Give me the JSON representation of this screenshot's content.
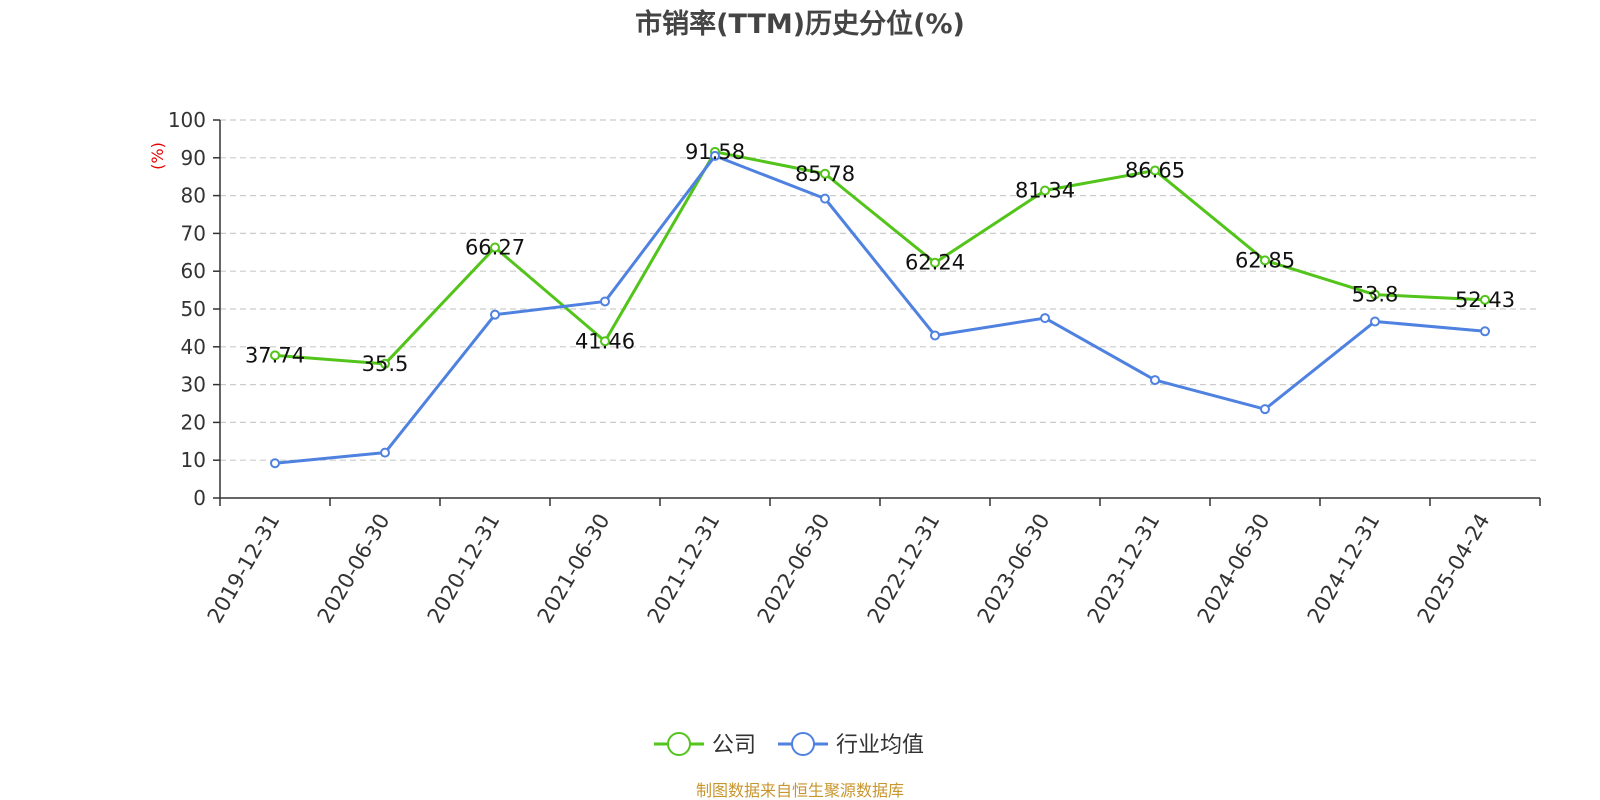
{
  "chart_data": {
    "type": "line",
    "title": "市销率(TTM)历史分位(%)",
    "ylabel": "(%)",
    "ylim": [
      0,
      100
    ],
    "yticks": [
      0,
      10,
      20,
      30,
      40,
      50,
      60,
      70,
      80,
      90,
      100
    ],
    "grid": true,
    "legend_position": "bottom",
    "categories": [
      "2019-12-31",
      "2020-06-30",
      "2020-12-31",
      "2021-06-30",
      "2021-12-31",
      "2022-06-30",
      "2022-12-31",
      "2023-06-30",
      "2023-12-31",
      "2024-06-30",
      "2024-12-31",
      "2025-04-24"
    ],
    "series": [
      {
        "name": "公司",
        "color": "#52c41a",
        "show_labels": true,
        "values": [
          37.74,
          35.5,
          66.27,
          41.46,
          91.58,
          85.78,
          62.24,
          81.34,
          86.65,
          62.85,
          53.8,
          52.43
        ]
      },
      {
        "name": "行业均值",
        "color": "#4f81e0",
        "show_labels": false,
        "values": [
          9.2,
          12.0,
          48.5,
          52.0,
          90.5,
          79.2,
          43.0,
          47.6,
          31.2,
          23.5,
          46.7,
          44.1
        ]
      }
    ],
    "source": "制图数据来自恒生聚源数据库"
  }
}
